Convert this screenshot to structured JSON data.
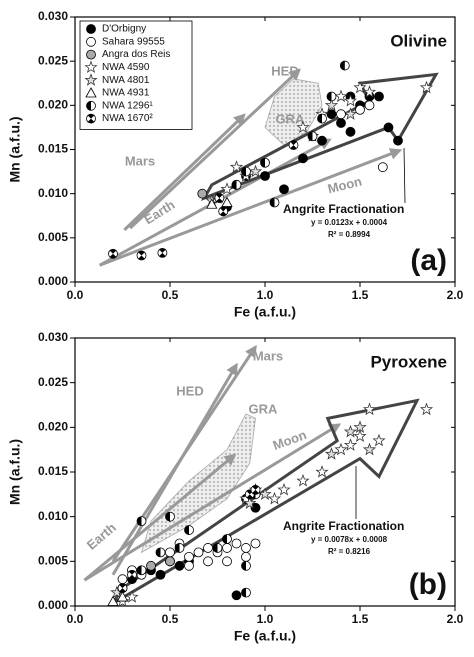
{
  "chart_data": [
    {
      "type": "scatter",
      "title": "Olivine",
      "panel": "(a)",
      "xlabel": "Fe (a.f.u.)",
      "ylabel": "Mn (a.f.u.)",
      "xlim": [
        0,
        2
      ],
      "ylim": [
        0,
        0.03
      ],
      "xticks": [
        {
          "value": 0,
          "label": "0.0"
        },
        {
          "value": 0.5,
          "label": "0.5"
        },
        {
          "value": 1,
          "label": "1.0"
        },
        {
          "value": 1.5,
          "label": "1.5"
        },
        {
          "value": 2,
          "label": "2.0"
        }
      ],
      "yticks": [
        {
          "value": 0,
          "label": "0.000"
        },
        {
          "value": 0.005,
          "label": "0.005"
        },
        {
          "value": 0.01,
          "label": "0.010"
        },
        {
          "value": 0.015,
          "label": "0.015"
        },
        {
          "value": 0.02,
          "label": "0.020"
        },
        {
          "value": 0.025,
          "label": "0.025"
        },
        {
          "value": 0.03,
          "label": "0.030"
        }
      ],
      "legend": "upper left",
      "series": [
        {
          "name": "D'Orbigny",
          "marker": "circle",
          "color": "#000000",
          "x": [
            1.45,
            1.5,
            1.55,
            1.6,
            1.65,
            1.7,
            1.35,
            1.4,
            1.2,
            1.0,
            0.85,
            0.8,
            1.1,
            1.45,
            1.3,
            0.9
          ],
          "y": [
            0.021,
            0.02,
            0.021,
            0.021,
            0.0175,
            0.016,
            0.019,
            0.018,
            0.014,
            0.012,
            0.011,
            0.0085,
            0.0105,
            0.017,
            0.016,
            0.012
          ]
        },
        {
          "name": "Sahara 99555",
          "marker": "circle",
          "color": "#ffffff",
          "x": [
            1.62,
            1.5,
            1.4,
            1.55
          ],
          "y": [
            0.013,
            0.0195,
            0.019,
            0.02
          ]
        },
        {
          "name": "Angra dos Reis",
          "marker": "circle",
          "color": "#aaaaaa",
          "x": [
            0.67
          ],
          "y": [
            0.01
          ]
        },
        {
          "name": "NWA 4590",
          "marker": "star",
          "color": "#ffffff",
          "x": [
            1.85,
            1.5,
            1.55,
            1.4,
            1.3,
            1.2,
            0.75,
            0.8,
            0.9,
            0.85,
            1.45
          ],
          "y": [
            0.022,
            0.022,
            0.0215,
            0.021,
            0.019,
            0.0175,
            0.0095,
            0.0105,
            0.012,
            0.013,
            0.0205
          ]
        },
        {
          "name": "NWA 4801",
          "marker": "star",
          "color": "#dddddd",
          "x": [
            1.35,
            1.45,
            1.25,
            0.95,
            0.72
          ],
          "y": [
            0.02,
            0.019,
            0.0165,
            0.0125,
            0.0092
          ]
        },
        {
          "name": "NWA 4931",
          "marker": "triangle",
          "color": "#ffffff",
          "x": [
            0.75,
            0.8,
            0.72
          ],
          "y": [
            0.0095,
            0.009,
            0.0088
          ]
        },
        {
          "name": "NWA 1296¹",
          "marker": "half",
          "color": "#000000",
          "x": [
            1.42,
            1.3,
            1.0,
            1.05,
            0.85,
            0.9,
            1.35,
            1.25
          ],
          "y": [
            0.0245,
            0.0185,
            0.0135,
            0.009,
            0.011,
            0.0125,
            0.021,
            0.0165
          ]
        },
        {
          "name": "NWA 1670²",
          "marker": "hourglass",
          "color": "#000000",
          "x": [
            0.2,
            0.35,
            0.46,
            0.78,
            0.76,
            1.15
          ],
          "y": [
            0.0032,
            0.003,
            0.0033,
            0.008,
            0.0095,
            0.0155
          ]
        }
      ],
      "arrows": [
        {
          "label": "HED",
          "from": [
            0.29,
            0.0061
          ],
          "to": [
            1.18,
            0.024
          ]
        },
        {
          "label": "Mars",
          "from": [
            0.26,
            0.0059
          ],
          "to": [
            0.89,
            0.0189
          ]
        },
        {
          "label": "Earth",
          "from": [
            0.13,
            0.0019
          ],
          "to": [
            1.34,
            0.0161
          ]
        },
        {
          "label": "Moon",
          "from": [
            0.13,
            0.0019
          ],
          "to": [
            1.71,
            0.0149
          ]
        }
      ],
      "region": {
        "label": "GRA",
        "points": [
          [
            1.0,
            0.0175
          ],
          [
            1.05,
            0.021
          ],
          [
            1.15,
            0.023
          ],
          [
            1.28,
            0.0225
          ],
          [
            1.3,
            0.02
          ],
          [
            1.22,
            0.017
          ],
          [
            1.1,
            0.0155
          ]
        ]
      },
      "fractionation": {
        "label": "Angrite Fractionation",
        "equation": "y = 0.0123x + 0.0004",
        "r2": "R² = 0.8994",
        "points": [
          [
            0.68,
            0.0095
          ],
          [
            0.72,
            0.011
          ],
          [
            1.55,
            0.0205
          ],
          [
            1.5,
            0.0225
          ],
          [
            1.9,
            0.0235
          ],
          [
            1.7,
            0.016
          ],
          [
            1.65,
            0.0175
          ]
        ]
      }
    },
    {
      "type": "scatter",
      "title": "Pyroxene",
      "panel": "(b)",
      "xlabel": "Fe (a.f.u.)",
      "ylabel": "Mn (a.f.u.)",
      "xlim": [
        0,
        2
      ],
      "ylim": [
        0,
        0.03
      ],
      "xticks": [
        {
          "value": 0,
          "label": "0.0"
        },
        {
          "value": 0.5,
          "label": "0.5"
        },
        {
          "value": 1,
          "label": "1.0"
        },
        {
          "value": 1.5,
          "label": "1.5"
        },
        {
          "value": 2,
          "label": "2.0"
        }
      ],
      "yticks": [
        {
          "value": 0,
          "label": "0.000"
        },
        {
          "value": 0.005,
          "label": "0.005"
        },
        {
          "value": 0.01,
          "label": "0.010"
        },
        {
          "value": 0.015,
          "label": "0.015"
        },
        {
          "value": 0.02,
          "label": "0.020"
        },
        {
          "value": 0.025,
          "label": "0.025"
        },
        {
          "value": 0.03,
          "label": "0.030"
        }
      ],
      "series": [
        {
          "marker": "circle",
          "color": "#000000",
          "x": [
            0.4,
            0.5,
            0.3,
            0.55,
            0.25,
            0.85,
            0.9,
            0.95,
            0.6,
            0.45
          ],
          "y": [
            0.004,
            0.005,
            0.003,
            0.0045,
            0.002,
            0.0012,
            0.012,
            0.011,
            0.005,
            0.0035
          ]
        },
        {
          "marker": "circle",
          "color": "#ffffff",
          "x": [
            0.5,
            0.6,
            0.65,
            0.7,
            0.75,
            0.8,
            0.85,
            0.9,
            0.95,
            0.7,
            0.8,
            0.9,
            0.6,
            0.55,
            0.35,
            0.25,
            0.3
          ],
          "y": [
            0.006,
            0.0055,
            0.006,
            0.0065,
            0.006,
            0.0065,
            0.007,
            0.0065,
            0.007,
            0.005,
            0.005,
            0.0055,
            0.0045,
            0.007,
            0.0035,
            0.003,
            0.004
          ]
        },
        {
          "marker": "circle",
          "color": "#aaaaaa",
          "x": [
            0.5,
            0.4
          ],
          "y": [
            0.005,
            0.0045
          ]
        },
        {
          "marker": "star",
          "color": "#ffffff",
          "x": [
            1.85,
            1.55,
            1.5,
            1.45,
            1.4,
            1.6,
            1.3,
            1.2,
            1.1,
            1.05,
            0.95,
            0.9,
            0.3,
            0.25
          ],
          "y": [
            0.022,
            0.022,
            0.019,
            0.018,
            0.0175,
            0.0185,
            0.015,
            0.014,
            0.013,
            0.012,
            0.013,
            0.012,
            0.001,
            0.0005
          ]
        },
        {
          "marker": "star",
          "color": "#dddddd",
          "x": [
            1.5,
            1.45,
            1.55,
            1.35,
            0.92,
            1.0,
            0.22
          ],
          "y": [
            0.02,
            0.0195,
            0.0175,
            0.017,
            0.0115,
            0.0125,
            0.0015
          ]
        },
        {
          "marker": "triangle",
          "color": "#ffffff",
          "x": [
            0.2,
            0.25
          ],
          "y": [
            0.0005,
            0.001
          ]
        },
        {
          "marker": "half",
          "color": "#000000",
          "x": [
            0.35,
            0.5,
            0.6,
            0.8,
            0.9,
            0.95,
            0.75,
            0.55,
            0.45,
            0.35,
            0.9
          ],
          "y": [
            0.0095,
            0.01,
            0.0085,
            0.0075,
            0.0015,
            0.0125,
            0.0065,
            0.0065,
            0.006,
            0.004,
            0.0045
          ]
        },
        {
          "marker": "hourglass",
          "color": "#000000",
          "x": [
            0.25,
            0.3,
            0.92,
            0.95
          ],
          "y": [
            0.002,
            0.0035,
            0.0125,
            0.013
          ]
        }
      ],
      "arrows": [
        {
          "label": "HED",
          "from": [
            0.2,
            0.0035
          ],
          "to": [
            0.85,
            0.027
          ]
        },
        {
          "label": "Mars",
          "from": [
            0.2,
            0.005
          ],
          "to": [
            0.95,
            0.029
          ]
        },
        {
          "label": "Earth",
          "from": [
            0.05,
            0.0029
          ],
          "to": [
            0.84,
            0.0169
          ]
        },
        {
          "label": "Moon",
          "from": [
            0.05,
            0.0029
          ],
          "to": [
            1.39,
            0.0203
          ]
        }
      ],
      "region": {
        "label": "GRA",
        "points": [
          [
            0.35,
            0.006
          ],
          [
            0.4,
            0.0095
          ],
          [
            0.6,
            0.014
          ],
          [
            0.8,
            0.0175
          ],
          [
            0.9,
            0.0215
          ],
          [
            0.95,
            0.021
          ],
          [
            0.92,
            0.016
          ],
          [
            0.8,
            0.012
          ],
          [
            0.6,
            0.009
          ]
        ]
      },
      "fractionation": {
        "label": "Angrite Fractionation",
        "equation": "y = 0.0078x + 0.0008",
        "r2": "R² = 0.8216",
        "points": [
          [
            0.2,
            0.0003
          ],
          [
            0.25,
            0.002
          ],
          [
            1.38,
            0.0185
          ],
          [
            1.33,
            0.021
          ],
          [
            1.8,
            0.023
          ],
          [
            1.6,
            0.0145
          ],
          [
            1.5,
            0.0165
          ]
        ]
      }
    }
  ]
}
